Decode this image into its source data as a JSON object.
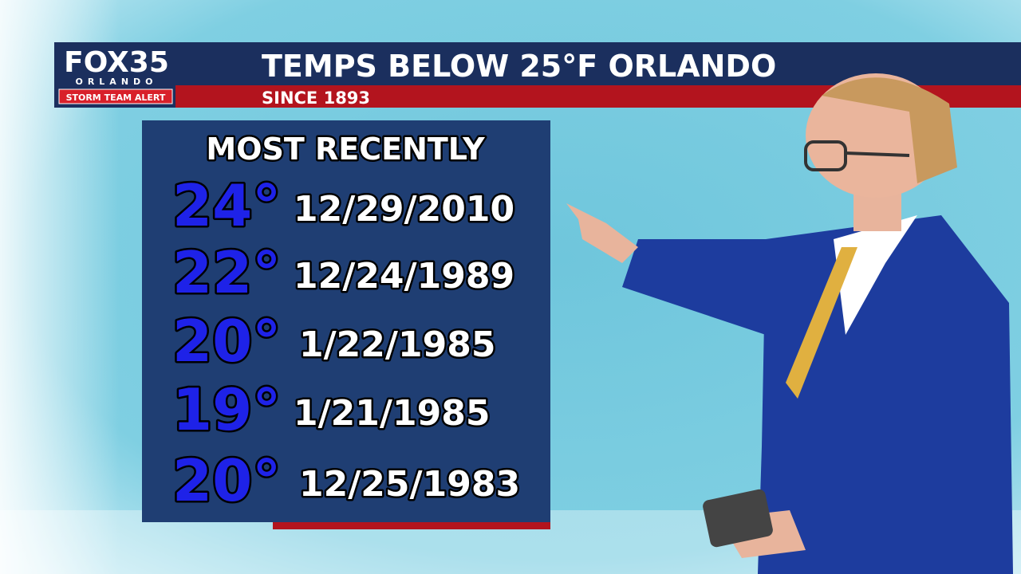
{
  "logo": {
    "brand": "FOX35",
    "city": "ORLANDO",
    "badge": "STORM TEAM ALERT"
  },
  "header": {
    "title": "TEMPS BELOW 25°F ORLANDO",
    "subtitle": "SINCE 1893"
  },
  "panel": {
    "heading": "MOST RECENTLY",
    "rows": [
      {
        "temp": "24°",
        "date": "12/29/2010"
      },
      {
        "temp": "22°",
        "date": "12/24/1989"
      },
      {
        "temp": "20°",
        "date": "1/22/1985"
      },
      {
        "temp": "19°",
        "date": "1/21/1985"
      },
      {
        "temp": "20°",
        "date": "12/25/1983"
      }
    ]
  }
}
